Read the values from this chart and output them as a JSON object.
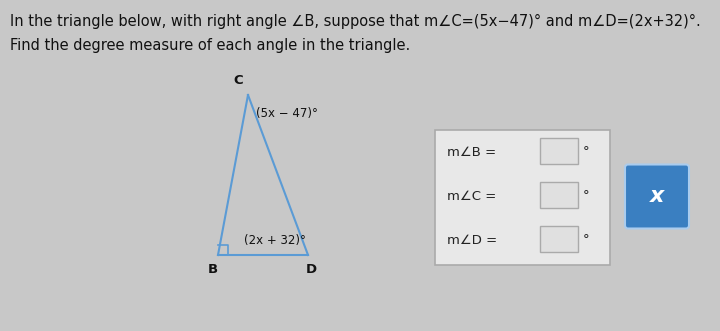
{
  "bg_color": "#c8c8c8",
  "title_line1": "In the triangle below, with right angle ∠B, suppose that m∠C=(5x−47)° and m∠D=(2x+32)°.",
  "title_line2": "Find the degree measure of each angle in the triangle.",
  "title_fontsize": 10.5,
  "title_color": "#111111",
  "label_C": "C",
  "label_B": "B",
  "label_D": "D",
  "angle_C_label": "(5x − 47)°",
  "angle_D_label": "(2x + 32)°",
  "triangle_color": "#5b9bd5",
  "triangle_lw": 1.5,
  "box_labels": [
    "m∠B =",
    "m∠C =",
    "m∠D ="
  ],
  "box_color": "#e8e8e8",
  "box_border_color": "#aaaaaa",
  "input_box_color": "#e0e0e0",
  "input_box_border": "#aaaaaa",
  "x_button_color": "#3a7fc1",
  "x_button_text": "x",
  "x_button_text_color": "#ffffff"
}
